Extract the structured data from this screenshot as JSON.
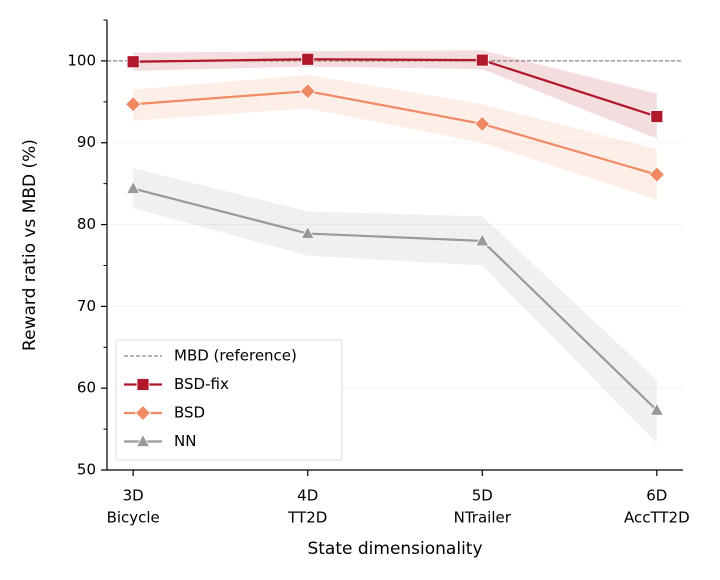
{
  "chart_data": {
    "type": "line",
    "x_label": "State dimensionality",
    "y_label": "Reward ratio vs MBD (%)",
    "categories": [
      "3D",
      "4D",
      "5D",
      "6D"
    ],
    "category_sublabels": [
      "Bicycle",
      "TT2D",
      "NTrailer",
      "AccTT2D"
    ],
    "ylim": [
      50,
      105
    ],
    "yticks": [
      50,
      60,
      70,
      80,
      90,
      100
    ],
    "yticks_minor": [
      55,
      65,
      75,
      85,
      95,
      105
    ],
    "grid": true,
    "legend_position": "lower left",
    "reference": {
      "name": "MBD (reference)",
      "value": 100,
      "color": "#888888"
    },
    "series": [
      {
        "name": "BSD-fix",
        "color": "#b2182b",
        "marker": "square",
        "values": [
          99.9,
          100.2,
          100.1,
          93.2
        ],
        "ci_lower": [
          98.8,
          99.3,
          99.0,
          90.5
        ],
        "ci_upper": [
          101.0,
          101.2,
          101.3,
          96.0
        ]
      },
      {
        "name": "BSD",
        "color": "#ef8a62",
        "marker": "diamond",
        "values": [
          94.7,
          96.3,
          92.3,
          86.1
        ],
        "ci_lower": [
          92.7,
          94.2,
          90.0,
          83.0
        ],
        "ci_upper": [
          96.5,
          98.3,
          94.7,
          89.2
        ]
      },
      {
        "name": "NN",
        "color": "#999999",
        "marker": "triangle",
        "values": [
          84.4,
          78.9,
          78.0,
          57.3
        ],
        "ci_lower": [
          82.0,
          76.2,
          75.0,
          53.3
        ],
        "ci_upper": [
          86.9,
          81.6,
          81.0,
          61.0
        ]
      }
    ]
  }
}
